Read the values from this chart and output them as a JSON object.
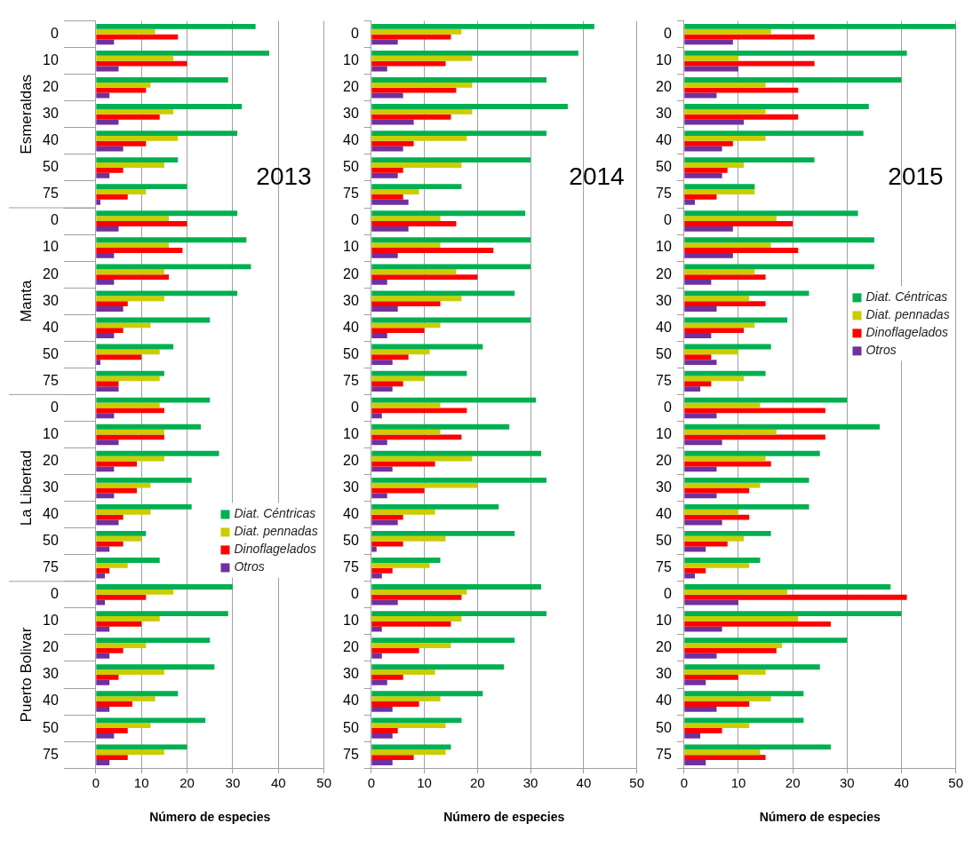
{
  "chart_data": [
    {
      "type": "bar",
      "orientation": "horizontal",
      "title": "2013",
      "xlabel": "Número de especies",
      "annotations": [
        "Esmeraldas",
        "Manta",
        "La Libertad",
        "Puerto Bolivar"
      ],
      "categories": [
        "0",
        "10",
        "20",
        "30",
        "40",
        "50",
        "75",
        "0",
        "10",
        "20",
        "30",
        "40",
        "50",
        "75",
        "0",
        "10",
        "20",
        "30",
        "40",
        "50",
        "75",
        "0",
        "10",
        "20",
        "30",
        "40",
        "50",
        "75"
      ],
      "xlim": [
        0,
        50
      ],
      "xticks": [
        0,
        10,
        20,
        30,
        40,
        50
      ],
      "grid": "x",
      "legend": "bottom right",
      "series": [
        {
          "name": "Diat. Céntricas",
          "color": "#00b050",
          "values": [
            35,
            38,
            29,
            32,
            31,
            18,
            20,
            31,
            33,
            34,
            31,
            25,
            17,
            15,
            25,
            23,
            27,
            21,
            21,
            11,
            14,
            30,
            29,
            25,
            26,
            18,
            24,
            20
          ]
        },
        {
          "name": "Diat. pennadas",
          "color": "#cccc00",
          "values": [
            13,
            17,
            12,
            17,
            18,
            15,
            11,
            16,
            16,
            15,
            15,
            12,
            14,
            14,
            14,
            15,
            15,
            12,
            12,
            10,
            7,
            17,
            14,
            11,
            15,
            13,
            12,
            15
          ]
        },
        {
          "name": "Dinoflagelados",
          "color": "#ff0000",
          "values": [
            18,
            20,
            11,
            14,
            11,
            6,
            7,
            20,
            19,
            16,
            7,
            6,
            10,
            5,
            15,
            15,
            9,
            9,
            6,
            6,
            3,
            11,
            10,
            6,
            5,
            8,
            7,
            7
          ]
        },
        {
          "name": "Otros",
          "color": "#7030a0",
          "values": [
            4,
            5,
            3,
            5,
            6,
            3,
            1,
            5,
            4,
            4,
            6,
            4,
            1,
            5,
            4,
            5,
            4,
            4,
            5,
            3,
            2,
            2,
            3,
            3,
            3,
            3,
            4,
            3
          ]
        }
      ]
    },
    {
      "type": "bar",
      "orientation": "horizontal",
      "title": "2014",
      "xlabel": "Número de especies",
      "categories": [
        "0",
        "10",
        "20",
        "30",
        "40",
        "50",
        "75",
        "0",
        "10",
        "20",
        "30",
        "40",
        "50",
        "75",
        "0",
        "10",
        "20",
        "30",
        "40",
        "50",
        "75",
        "0",
        "10",
        "20",
        "30",
        "40",
        "50",
        "75"
      ],
      "xlim": [
        0,
        50
      ],
      "xticks": [
        0,
        10,
        20,
        30,
        40,
        50
      ],
      "grid": "x",
      "series": [
        {
          "color": "#00b050",
          "values": [
            42,
            39,
            33,
            37,
            33,
            30,
            17,
            29,
            30,
            30,
            27,
            30,
            21,
            18,
            31,
            26,
            32,
            33,
            24,
            27,
            13,
            32,
            33,
            27,
            25,
            21,
            17,
            15
          ]
        },
        {
          "color": "#cccc00",
          "values": [
            17,
            19,
            19,
            19,
            18,
            17,
            9,
            13,
            13,
            16,
            17,
            13,
            11,
            10,
            13,
            13,
            19,
            20,
            12,
            14,
            11,
            18,
            17,
            15,
            12,
            13,
            14,
            14
          ]
        },
        {
          "color": "#ff0000",
          "values": [
            15,
            14,
            16,
            15,
            8,
            6,
            6,
            16,
            23,
            20,
            13,
            10,
            7,
            6,
            18,
            17,
            12,
            10,
            6,
            6,
            4,
            17,
            15,
            9,
            6,
            9,
            5,
            8
          ]
        },
        {
          "color": "#7030a0",
          "values": [
            5,
            3,
            6,
            8,
            6,
            5,
            7,
            7,
            5,
            3,
            5,
            3,
            4,
            4,
            2,
            3,
            4,
            3,
            5,
            1,
            2,
            5,
            2,
            2,
            3,
            4,
            4,
            4
          ]
        }
      ]
    },
    {
      "type": "bar",
      "orientation": "horizontal",
      "title": "2015",
      "xlabel": "Número de especies",
      "categories": [
        "0",
        "10",
        "20",
        "30",
        "40",
        "50",
        "75",
        "0",
        "10",
        "20",
        "30",
        "40",
        "50",
        "75",
        "0",
        "10",
        "20",
        "30",
        "40",
        "50",
        "75",
        "0",
        "10",
        "20",
        "30",
        "40",
        "50",
        "75"
      ],
      "xlim": [
        0,
        50
      ],
      "xticks": [
        0,
        10,
        20,
        30,
        40,
        50
      ],
      "grid": "x",
      "legend": "right",
      "series": [
        {
          "name": "Diat. Céntricas",
          "color": "#00b050",
          "values": [
            50,
            41,
            40,
            34,
            33,
            24,
            13,
            32,
            35,
            35,
            23,
            19,
            16,
            15,
            30,
            36,
            25,
            23,
            23,
            16,
            14,
            38,
            40,
            30,
            25,
            22,
            22,
            27
          ]
        },
        {
          "name": "Diat. pennadas",
          "color": "#cccc00",
          "values": [
            16,
            10,
            15,
            15,
            15,
            11,
            13,
            17,
            16,
            13,
            12,
            13,
            10,
            11,
            14,
            17,
            15,
            14,
            10,
            11,
            12,
            19,
            21,
            18,
            15,
            16,
            12,
            14
          ]
        },
        {
          "name": "Dinoflagelados",
          "color": "#ff0000",
          "values": [
            24,
            24,
            21,
            21,
            9,
            8,
            6,
            20,
            21,
            15,
            15,
            11,
            5,
            5,
            26,
            26,
            16,
            12,
            12,
            8,
            4,
            41,
            27,
            17,
            10,
            12,
            7,
            15
          ]
        },
        {
          "name": "Otros",
          "color": "#7030a0",
          "values": [
            9,
            10,
            6,
            11,
            7,
            7,
            2,
            9,
            9,
            5,
            6,
            5,
            6,
            3,
            6,
            7,
            6,
            6,
            7,
            4,
            2,
            10,
            7,
            6,
            4,
            6,
            3,
            4
          ]
        }
      ]
    }
  ]
}
